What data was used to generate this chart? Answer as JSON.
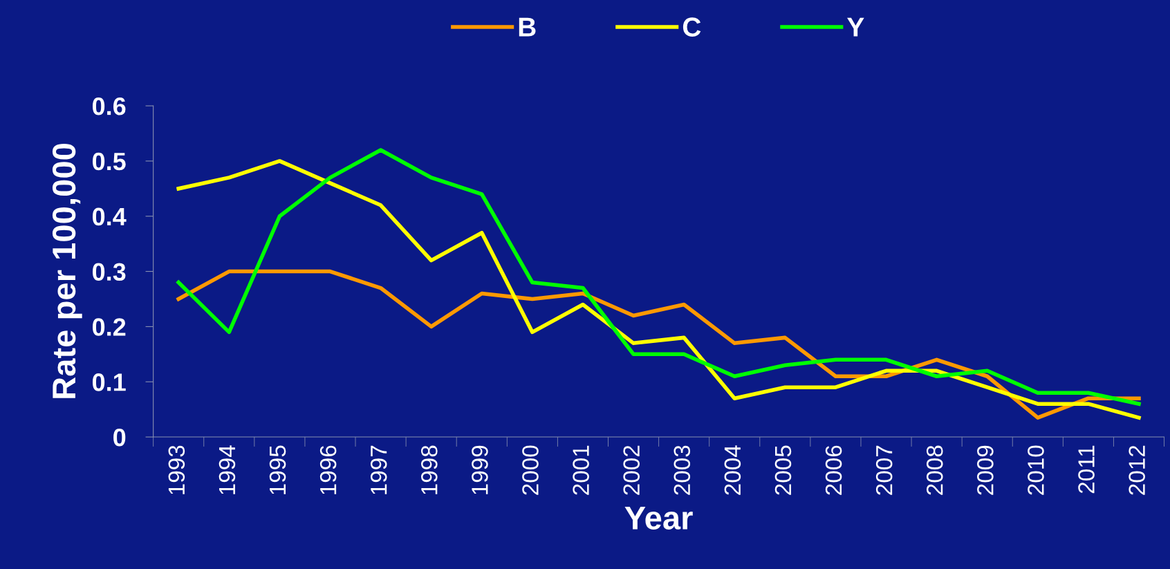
{
  "chart_data": {
    "type": "line",
    "xlabel": "Year",
    "ylabel": "Rate per 100,000",
    "categories": [
      "1993",
      "1994",
      "1995",
      "1996",
      "1997",
      "1998",
      "1999",
      "2000",
      "2001",
      "2002",
      "2003",
      "2004",
      "2005",
      "2006",
      "2007",
      "2008",
      "2009",
      "2010",
      "2011",
      "2012"
    ],
    "series": [
      {
        "name": "B",
        "color": "#ff9900",
        "values": [
          0.25,
          0.3,
          0.3,
          0.3,
          0.27,
          0.2,
          0.26,
          0.25,
          0.26,
          0.22,
          0.24,
          0.17,
          0.18,
          0.11,
          0.11,
          0.14,
          0.11,
          0.035,
          0.07,
          0.07
        ]
      },
      {
        "name": "C",
        "color": "#ffff00",
        "values": [
          0.45,
          0.47,
          0.5,
          0.46,
          0.42,
          0.32,
          0.37,
          0.19,
          0.24,
          0.17,
          0.18,
          0.07,
          0.09,
          0.09,
          0.12,
          0.12,
          0.09,
          0.06,
          0.06,
          0.035
        ]
      },
      {
        "name": "Y",
        "color": "#00ff00",
        "values": [
          0.28,
          0.19,
          0.4,
          0.47,
          0.52,
          0.47,
          0.44,
          0.28,
          0.27,
          0.15,
          0.15,
          0.11,
          0.13,
          0.14,
          0.14,
          0.11,
          0.12,
          0.08,
          0.08,
          0.06
        ]
      }
    ],
    "ylim": [
      0,
      0.6
    ],
    "yticks": [
      {
        "value": 0,
        "label": "0"
      },
      0.1,
      0.2,
      0.3,
      0.4,
      0.5,
      0.6
    ],
    "legend": "top",
    "grid": false,
    "marker": "none",
    "line_style": "solid"
  }
}
